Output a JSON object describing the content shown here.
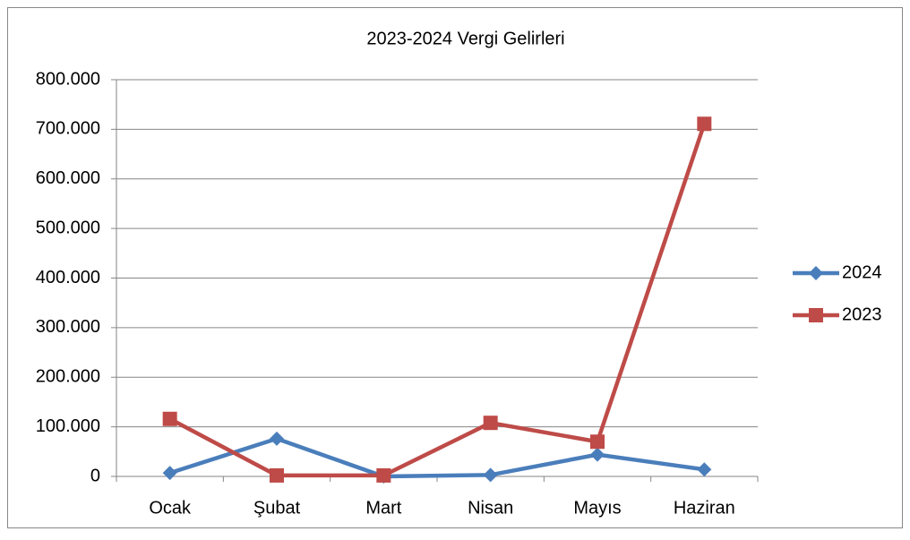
{
  "chart_data": {
    "type": "line",
    "title": "2023-2024 Vergi Gelirleri",
    "categories": [
      "Ocak",
      "Şubat",
      "Mart",
      "Nisan",
      "Mayıs",
      "Haziran"
    ],
    "series": [
      {
        "name": "2024",
        "color": "#4a7ebb",
        "marker": "diamond",
        "values": [
          7000,
          76000,
          0,
          3000,
          44000,
          14000
        ]
      },
      {
        "name": "2023",
        "color": "#be4b48",
        "marker": "square",
        "values": [
          116000,
          2000,
          2000,
          108000,
          70000,
          711000
        ]
      }
    ],
    "ylim": [
      0,
      800000
    ],
    "yticks": [
      0,
      {
        "value": 100000,
        "label": "100.000"
      },
      {
        "value": 200000,
        "label": "200.000"
      },
      {
        "value": 300000,
        "label": "300.000"
      },
      {
        "value": 400000,
        "label": "400.000"
      },
      {
        "value": 500000,
        "label": "500.000"
      },
      {
        "value": 600000,
        "label": "600.000"
      },
      {
        "value": 700000,
        "label": "700.000"
      },
      {
        "value": 800000,
        "label": "800.000"
      }
    ],
    "grid": true,
    "legend": "right"
  }
}
